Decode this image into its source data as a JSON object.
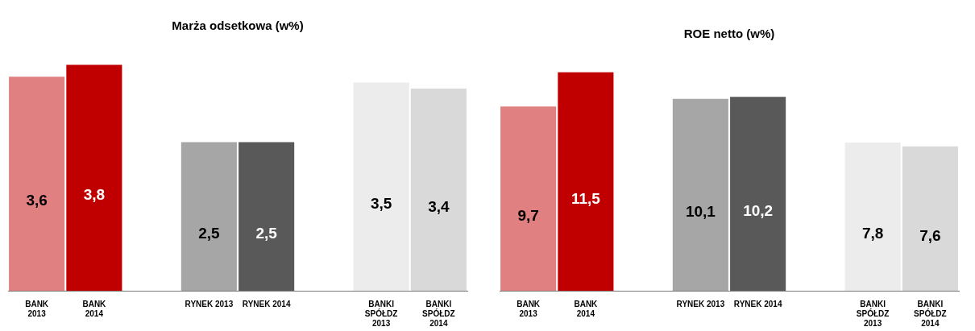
{
  "chart_data": [
    {
      "type": "bar",
      "title": "Marża odsetkowa (w%)",
      "categories": [
        "BANK\n2013",
        "BANK\n2014",
        null,
        "RYNEK 2013",
        "RYNEK 2014",
        null,
        "BANKI\nSPÓŁDZ\n2013",
        "BANKI\nSPÓŁDZ\n2014"
      ],
      "values": [
        3.6,
        3.8,
        null,
        2.5,
        2.5,
        null,
        3.5,
        3.4
      ],
      "colors": [
        "#e08080",
        "#c00000",
        "#ffffff",
        "#a6a6a6",
        "#595959",
        "#ffffff",
        "#ececec",
        "#d9d9d9"
      ],
      "value_labels": [
        "3,6",
        "3,8",
        null,
        "2,5",
        "2,5",
        null,
        "3,5",
        "3,4"
      ],
      "tick_labels": "x",
      "grid": false,
      "legend": false
    },
    {
      "type": "bar",
      "title": "ROE netto (w%)",
      "categories": [
        "BANK\n2013",
        "BANK\n2014",
        null,
        "RYNEK 2013",
        "RYNEK 2014",
        null,
        "BANKI\nSPÓŁDZ\n2013",
        "BANKI\nSPÓŁDZ\n2014"
      ],
      "values": [
        9.7,
        11.5,
        null,
        10.1,
        10.2,
        null,
        7.8,
        7.6
      ],
      "colors": [
        "#e08080",
        "#c00000",
        "#ffffff",
        "#a6a6a6",
        "#595959",
        "#ffffff",
        "#ececec",
        "#d9d9d9"
      ],
      "value_labels": [
        "9,7",
        "11,5",
        null,
        "10,1",
        "10,2",
        null,
        "7,8",
        "7,6"
      ],
      "tick_labels": "x",
      "grid": false,
      "legend": false
    }
  ]
}
